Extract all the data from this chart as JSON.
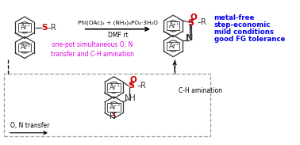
{
  "bg_color": "#ffffff",
  "reagent_text": "PhI(OAc)₂ + (NH₄)₃PO₄·3H₂O",
  "solvent_text": "DMF rt",
  "mechanism_text": "one-pot simultaneous O, N\ntransfer and C-H amination",
  "mechanism_color": "#dd00dd",
  "blue_text_lines": [
    "metal-free",
    "step-economic",
    "mild conditions",
    "good FG tolerance"
  ],
  "blue_color": "#0000ee",
  "dashed_color": "#999999",
  "on_transfer_text": "O, N transfer",
  "ch_amination_text": "C-H amination",
  "red_color": "#cc0000",
  "dark_color": "#333333",
  "figsize": [
    3.78,
    1.83
  ],
  "dpi": 100
}
